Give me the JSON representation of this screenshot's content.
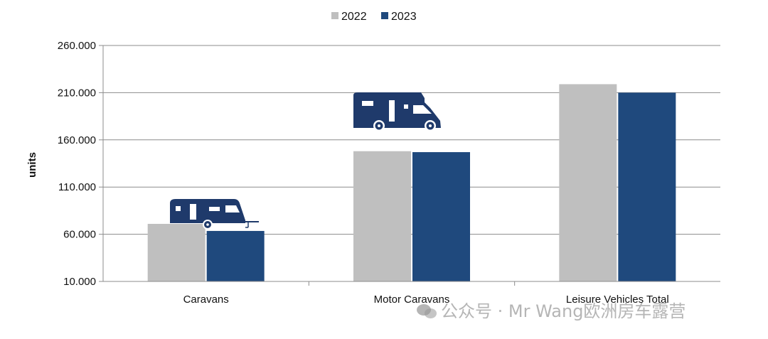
{
  "chart_data": {
    "type": "bar",
    "categories": [
      "Caravans",
      "Motor Caravans",
      "Leisure Vehicles Total"
    ],
    "series": [
      {
        "name": "2022",
        "values": [
          71000,
          148000,
          219000
        ],
        "color": "#bfbfbf"
      },
      {
        "name": "2023",
        "values": [
          63500,
          147000,
          210000
        ],
        "color": "#1f497d"
      }
    ],
    "ylabel": "units",
    "ylim": [
      10000,
      260000
    ],
    "yticks": [
      10000,
      60000,
      110000,
      160000,
      210000,
      260000
    ],
    "ytick_labels": [
      "10.000",
      "60.000",
      "110.000",
      "160.000",
      "210.000",
      "260.000"
    ],
    "grid": true,
    "legend_position": "top-center",
    "icons": [
      "caravan-icon",
      "motorhome-icon"
    ],
    "icon_color": "#1f3a6b"
  },
  "watermark": {
    "text": "公众号 · Mr Wang欧洲房车露营",
    "icon": "wechat-icon"
  }
}
